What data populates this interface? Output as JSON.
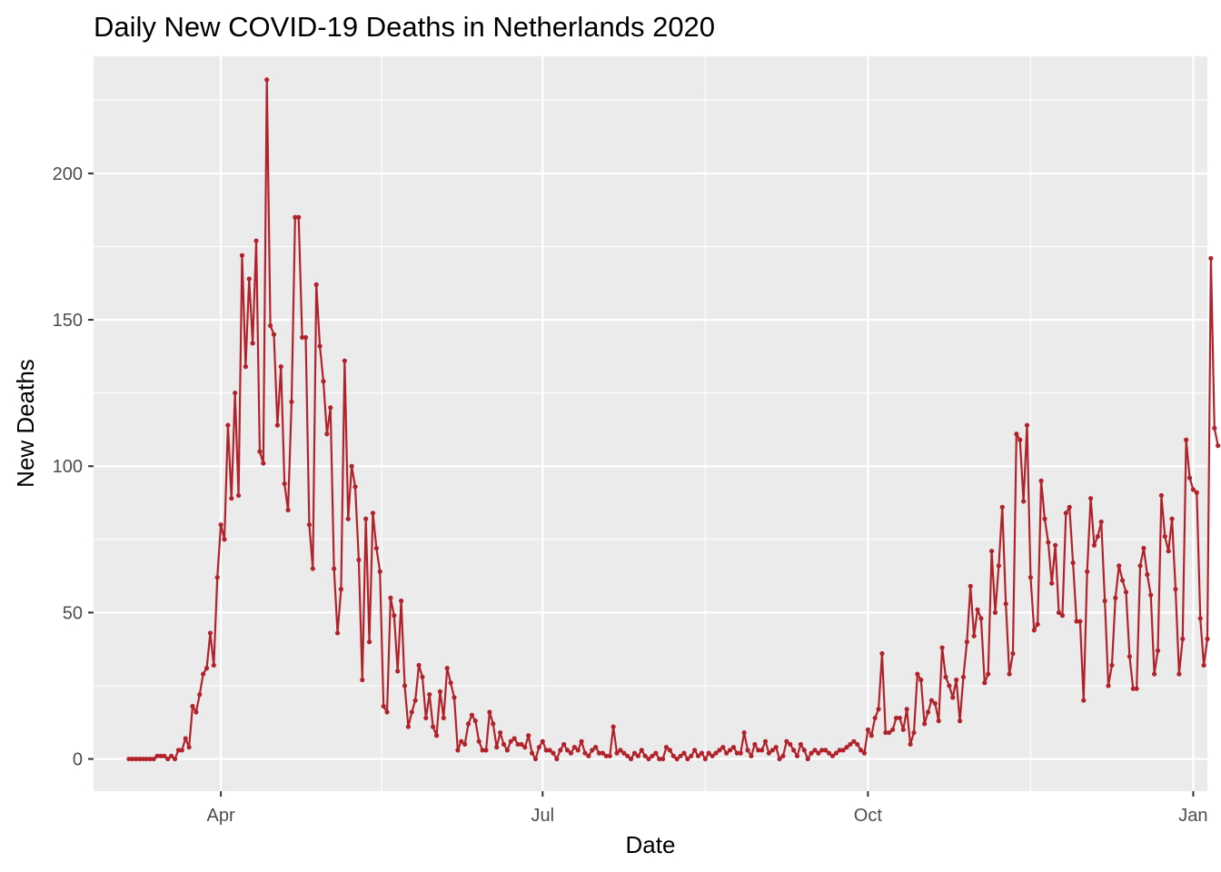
{
  "chart_data": {
    "type": "line",
    "title": "Daily New COVID-19 Deaths in Netherlands 2020",
    "xlabel": "Date",
    "ylabel": "New Deaths",
    "x_start": "2020-03-06",
    "x_end": "2020-12-31",
    "xlim": [
      "2020-02-25",
      "2021-01-05"
    ],
    "ylim": [
      -11,
      240
    ],
    "x_ticks": [
      {
        "date": "2020-04-01",
        "label": "Apr"
      },
      {
        "date": "2020-07-01",
        "label": "Jul"
      },
      {
        "date": "2020-10-01",
        "label": "Oct"
      },
      {
        "date": "2021-01-01",
        "label": "Jan"
      }
    ],
    "y_ticks": [
      0,
      50,
      100,
      150,
      200
    ],
    "grid": true,
    "legend": "none",
    "series": [
      {
        "color": "#b2222b",
        "values": [
          0,
          0,
          0,
          0,
          0,
          0,
          0,
          0,
          1,
          1,
          1,
          0,
          1,
          0,
          3,
          3,
          7,
          4,
          18,
          16,
          22,
          29,
          31,
          43,
          32,
          62,
          80,
          75,
          114,
          89,
          125,
          90,
          172,
          134,
          164,
          142,
          177,
          105,
          101,
          232,
          148,
          145,
          114,
          134,
          94,
          85,
          122,
          185,
          185,
          144,
          144,
          80,
          65,
          162,
          141,
          129,
          111,
          120,
          65,
          43,
          58,
          136,
          82,
          100,
          93,
          68,
          27,
          82,
          40,
          84,
          72,
          64,
          18,
          16,
          55,
          49,
          30,
          54,
          25,
          11,
          16,
          20,
          32,
          28,
          14,
          22,
          11,
          8,
          23,
          14,
          31,
          26,
          21,
          3,
          6,
          5,
          12,
          15,
          13,
          6,
          3,
          3,
          16,
          12,
          4,
          9,
          5,
          3,
          6,
          7,
          5,
          5,
          4,
          8,
          2,
          0,
          4,
          6,
          3,
          3,
          2,
          0,
          3,
          5,
          3,
          2,
          4,
          3,
          6,
          2,
          1,
          3,
          4,
          2,
          2,
          1,
          1,
          11,
          2,
          3,
          2,
          1,
          0,
          2,
          1,
          3,
          1,
          0,
          1,
          2,
          0,
          0,
          4,
          3,
          1,
          0,
          1,
          2,
          0,
          1,
          3,
          1,
          2,
          0,
          2,
          1,
          2,
          3,
          4,
          2,
          3,
          4,
          2,
          2,
          9,
          3,
          1,
          5,
          3,
          3,
          6,
          2,
          3,
          4,
          0,
          1,
          6,
          5,
          3,
          1,
          5,
          3,
          0,
          2,
          3,
          2,
          3,
          3,
          2,
          1,
          2,
          3,
          3,
          4,
          5,
          6,
          5,
          3,
          2,
          10,
          8,
          14,
          17,
          36,
          9,
          9,
          10,
          14,
          14,
          10,
          17,
          5,
          9,
          29,
          27,
          12,
          16,
          20,
          19,
          13,
          38,
          28,
          25,
          21,
          27,
          13,
          28,
          40,
          59,
          42,
          51,
          48,
          26,
          29,
          71,
          50,
          66,
          86,
          53,
          29,
          36,
          111,
          109,
          88,
          114,
          62,
          44,
          46,
          95,
          82,
          74,
          60,
          73,
          50,
          49,
          84,
          86,
          67,
          47,
          47,
          20,
          64,
          89,
          73,
          76,
          81,
          54,
          25,
          32,
          55,
          66,
          61,
          57,
          35,
          24,
          24,
          66,
          72,
          63,
          56,
          29,
          37,
          90,
          76,
          71,
          82,
          58,
          29,
          41,
          109,
          96,
          92,
          91,
          48,
          32,
          41,
          171,
          113,
          107
        ]
      }
    ]
  }
}
